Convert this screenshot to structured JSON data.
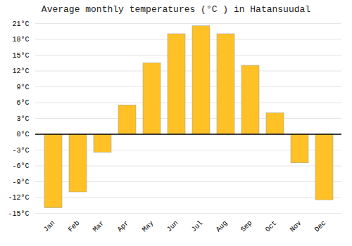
{
  "chart_data": {
    "type": "bar",
    "title": "Average monthly temperatures (°C ) in Hatansuudal",
    "categories": [
      "Jan",
      "Feb",
      "Mar",
      "Apr",
      "May",
      "Jun",
      "Jul",
      "Aug",
      "Sep",
      "Oct",
      "Nov",
      "Dec"
    ],
    "values": [
      -14,
      -11,
      -3.5,
      5.5,
      13.5,
      19,
      20.5,
      19,
      13,
      4,
      -5.5,
      -12.5
    ],
    "color": "#FFC125",
    "ylim": [
      -15,
      21
    ],
    "yticks": [
      {
        "value": -15,
        "label": "-15°C"
      },
      {
        "value": -12,
        "label": "-12°C"
      },
      {
        "value": -9,
        "label": "-9°C"
      },
      {
        "value": -6,
        "label": "-6°C"
      },
      {
        "value": -3,
        "label": "-3°C"
      },
      {
        "value": 0,
        "label": "0°C"
      },
      {
        "value": 3,
        "label": "3°C"
      },
      {
        "value": 6,
        "label": "6°C"
      },
      {
        "value": 9,
        "label": "9°C"
      },
      {
        "value": 12,
        "label": "12°C"
      },
      {
        "value": 15,
        "label": "15°C"
      },
      {
        "value": 18,
        "label": "18°C"
      },
      {
        "value": 21,
        "label": "21°C"
      }
    ],
    "grid": true
  }
}
